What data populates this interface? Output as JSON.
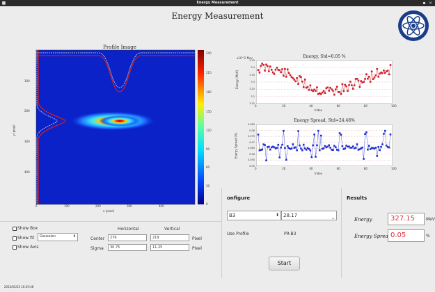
{
  "window": {
    "title": "Energy Measurement"
  },
  "heading": "Energy Measurement",
  "profile_image": {
    "title": "Profile Image",
    "x_label": "x (pixel)",
    "y_label": "y (pixel)",
    "x_ticks": [
      "0",
      "100",
      "200",
      "300",
      "400"
    ],
    "y_ticks": [
      "100",
      "200",
      "300",
      "400"
    ],
    "colorbar_ticks": [
      "240",
      "210",
      "180",
      "150",
      "120",
      "90",
      "60",
      "30",
      "0"
    ]
  },
  "energy_chart": {
    "title": "Energy, Std=0.05 %",
    "corner_label": "x10^2 Mev",
    "x_label": "Index",
    "y_label": "Energy (MeV)",
    "x_ticks": [
      "0",
      "20",
      "40",
      "60",
      "80",
      "100"
    ],
    "y_ticks": [
      "3.45",
      "3.4",
      "3.35",
      "3.3",
      "3.25",
      "3.2",
      "3.15"
    ],
    "color": "#cc1f2c"
  },
  "spread_chart": {
    "title": "Energy Spread, Std=24.48%",
    "x_label": "Index",
    "y_label": "Energy Spread (%)",
    "x_ticks": [
      "0",
      "20",
      "40",
      "60",
      "80",
      "100"
    ],
    "y_ticks": [
      "0.085",
      "0.08",
      "0.075",
      "0.07",
      "0.065",
      "0.06",
      "0.055",
      "0.05"
    ],
    "color": "#1d2fd0"
  },
  "options": {
    "show_box": "Show Box",
    "show_fit": "Show fit",
    "show_axis": "Show Axis",
    "fit_method": "Gaussian",
    "col_horizontal": "Horizontal",
    "col_vertical": "Vertical",
    "center_label": "Center",
    "sigma_label": "Sigma",
    "center_h": "276",
    "center_v": "219",
    "sigma_h": "30.75",
    "sigma_v": "11.25",
    "unit": "Pixel"
  },
  "configure": {
    "title": "onfigure",
    "select_value": "B3",
    "number_value": "28.17",
    "use_profile_label": "Use Profile",
    "use_profile_value": "PR-B3",
    "start_label": "Start"
  },
  "results": {
    "title": "Results",
    "energy_label": "Energy",
    "energy_value": "327.15",
    "energy_unit": "MeV",
    "spread_label": "Energy Spread",
    "spread_value": "0.05",
    "spread_unit": "%"
  },
  "status": "2013/05/23 16:29:48"
}
